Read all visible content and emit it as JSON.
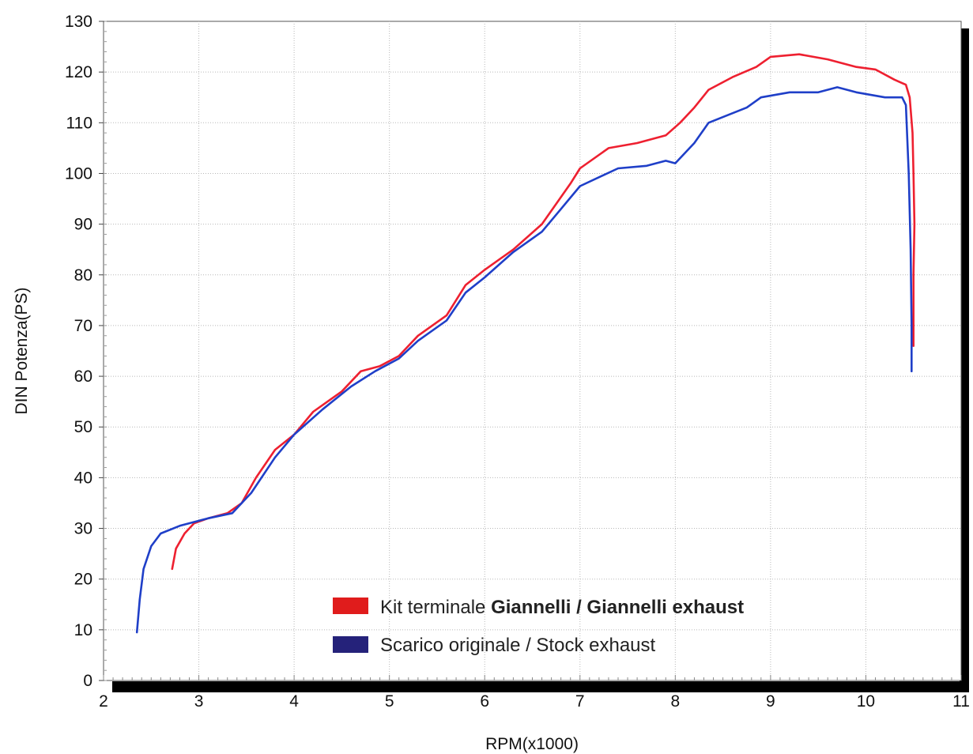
{
  "chart_data": {
    "type": "line",
    "xlabel": "RPM(x1000)",
    "ylabel": "DIN Potenza(PS)",
    "xlim": [
      2,
      11
    ],
    "ylim": [
      0,
      130
    ],
    "x_ticks": [
      "2",
      "3",
      "4",
      "5",
      "6",
      "7",
      "8",
      "9",
      "10",
      "11"
    ],
    "y_ticks": [
      "0",
      "10",
      "20",
      "30",
      "40",
      "50",
      "60",
      "70",
      "80",
      "90",
      "100",
      "110",
      "120",
      "130"
    ],
    "grid": true,
    "legend_position": "bottom-center",
    "legend": {
      "series_0": {
        "prefix": "Kit terminale ",
        "bold": "Giannelli / Giannelli exhaust"
      },
      "series_1": {
        "text": "Scarico originale / Stock exhaust"
      }
    },
    "series": [
      {
        "color": "#ee2030",
        "legend_color": "#e01c1c",
        "points": [
          [
            2.72,
            22
          ],
          [
            2.76,
            26
          ],
          [
            2.85,
            29
          ],
          [
            2.95,
            31
          ],
          [
            3.1,
            32
          ],
          [
            3.3,
            33
          ],
          [
            3.45,
            35
          ],
          [
            3.6,
            40
          ],
          [
            3.8,
            45.5
          ],
          [
            4.0,
            48.5
          ],
          [
            4.2,
            53
          ],
          [
            4.5,
            57
          ],
          [
            4.7,
            61
          ],
          [
            4.9,
            62
          ],
          [
            5.1,
            64
          ],
          [
            5.3,
            68
          ],
          [
            5.6,
            72
          ],
          [
            5.8,
            78
          ],
          [
            6.0,
            81
          ],
          [
            6.3,
            85
          ],
          [
            6.6,
            90
          ],
          [
            6.9,
            98
          ],
          [
            7.0,
            101
          ],
          [
            7.3,
            105
          ],
          [
            7.6,
            106
          ],
          [
            7.9,
            107.5
          ],
          [
            8.05,
            110
          ],
          [
            8.2,
            113
          ],
          [
            8.35,
            116.5
          ],
          [
            8.6,
            119
          ],
          [
            8.85,
            121
          ],
          [
            9.0,
            123
          ],
          [
            9.3,
            123.5
          ],
          [
            9.6,
            122.5
          ],
          [
            9.9,
            121
          ],
          [
            10.1,
            120.5
          ],
          [
            10.3,
            118.5
          ],
          [
            10.42,
            117.5
          ],
          [
            10.46,
            115
          ],
          [
            10.49,
            108
          ],
          [
            10.5,
            100
          ],
          [
            10.51,
            90
          ],
          [
            10.5,
            80
          ],
          [
            10.5,
            66
          ]
        ]
      },
      {
        "color": "#1f3fc8",
        "legend_color": "#25227a",
        "points": [
          [
            2.35,
            9.5
          ],
          [
            2.38,
            16
          ],
          [
            2.42,
            22
          ],
          [
            2.5,
            26.5
          ],
          [
            2.6,
            29
          ],
          [
            2.8,
            30.5
          ],
          [
            3.0,
            31.5
          ],
          [
            3.1,
            32
          ],
          [
            3.35,
            33
          ],
          [
            3.55,
            37
          ],
          [
            3.8,
            44
          ],
          [
            4.0,
            48.5
          ],
          [
            4.3,
            53.5
          ],
          [
            4.6,
            58
          ],
          [
            4.85,
            61
          ],
          [
            5.1,
            63.5
          ],
          [
            5.3,
            67
          ],
          [
            5.6,
            71
          ],
          [
            5.8,
            76.5
          ],
          [
            6.0,
            79.5
          ],
          [
            6.3,
            84.5
          ],
          [
            6.6,
            88.5
          ],
          [
            6.8,
            93
          ],
          [
            7.0,
            97.5
          ],
          [
            7.4,
            101
          ],
          [
            7.7,
            101.5
          ],
          [
            7.9,
            102.5
          ],
          [
            8.0,
            102
          ],
          [
            8.2,
            106
          ],
          [
            8.35,
            110
          ],
          [
            8.55,
            111.5
          ],
          [
            8.75,
            113
          ],
          [
            8.9,
            115
          ],
          [
            9.2,
            116
          ],
          [
            9.5,
            116
          ],
          [
            9.7,
            117
          ],
          [
            9.9,
            116
          ],
          [
            10.2,
            115
          ],
          [
            10.38,
            115
          ],
          [
            10.42,
            113.5
          ],
          [
            10.45,
            100
          ],
          [
            10.47,
            85
          ],
          [
            10.48,
            70
          ],
          [
            10.48,
            61
          ]
        ]
      }
    ]
  }
}
